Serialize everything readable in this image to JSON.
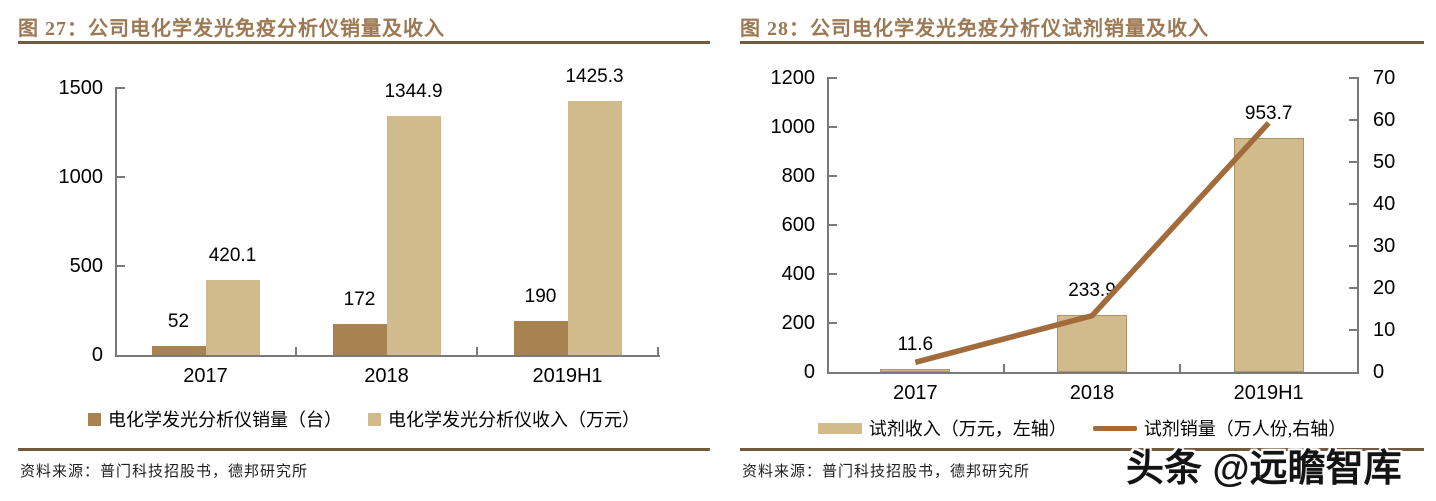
{
  "watermark": "头条 @远瞻智库",
  "sources": [
    "资料来源：普门科技招股书，德邦研究所",
    "资料来源：普门科技招股书，德邦研究所"
  ],
  "colors": {
    "title": "#9c7853",
    "rule": "#715a3e",
    "axis": "#7a7a7a",
    "bar_dark": "#a8834f",
    "bar_light": "#d1bb8c",
    "line": "#a26b3c",
    "text": "#000000"
  },
  "chart_data": [
    {
      "type": "bar",
      "title": "图 27：公司电化学发光免疫分析仪销量及收入",
      "categories": [
        "2017",
        "2018",
        "2019H1"
      ],
      "series": [
        {
          "name": "电化学发光分析仪销量（台）",
          "type": "bar",
          "values": [
            52,
            172,
            190
          ],
          "color": "#a8834f",
          "data_labels": [
            "52",
            "172",
            "190"
          ]
        },
        {
          "name": "电化学发光分析仪收入（万元）",
          "type": "bar",
          "values": [
            420.1,
            1344.9,
            1425.3
          ],
          "color": "#d1bb8c",
          "data_labels": [
            "420.1",
            "1344.9",
            "1425.3"
          ]
        }
      ],
      "ylim": [
        0,
        1500
      ],
      "yticks": [
        0,
        500,
        1000,
        1500
      ],
      "grid": false,
      "legend_position": "bottom"
    },
    {
      "type": "bar+line",
      "title": "图 28：公司电化学发光免疫分析仪试剂销量及收入",
      "categories": [
        "2017",
        "2018",
        "2019H1"
      ],
      "series": [
        {
          "name": "试剂收入（万元，左轴）",
          "type": "bar",
          "axis": "left",
          "values": [
            11.6,
            233.9,
            953.7
          ],
          "color": "#d1bb8c",
          "data_labels": [
            "11.6",
            "233.9",
            "953.7"
          ]
        },
        {
          "name": "试剂销量（万人份,右轴）",
          "type": "line",
          "axis": "right",
          "values": [
            2.3,
            13.4,
            59.3
          ],
          "color": "#a26b3c"
        }
      ],
      "ylim_left": [
        0,
        1200
      ],
      "yticks_left": [
        0,
        200,
        400,
        600,
        800,
        1000,
        1200
      ],
      "ylim_right": [
        0,
        70
      ],
      "yticks_right": [
        0,
        10,
        20,
        30,
        40,
        50,
        60,
        70
      ],
      "grid": false,
      "legend_position": "bottom"
    }
  ]
}
